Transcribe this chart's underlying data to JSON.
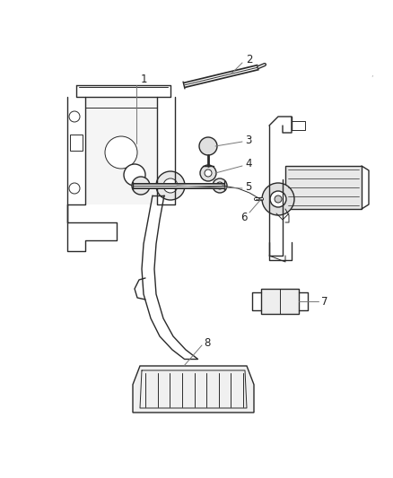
{
  "bg_color": "#ffffff",
  "line_color": "#2a2a2a",
  "leader_color": "#777777",
  "label_color": "#222222",
  "fig_width": 4.38,
  "fig_height": 5.33,
  "dpi": 100,
  "label_fontsize": 8.5
}
